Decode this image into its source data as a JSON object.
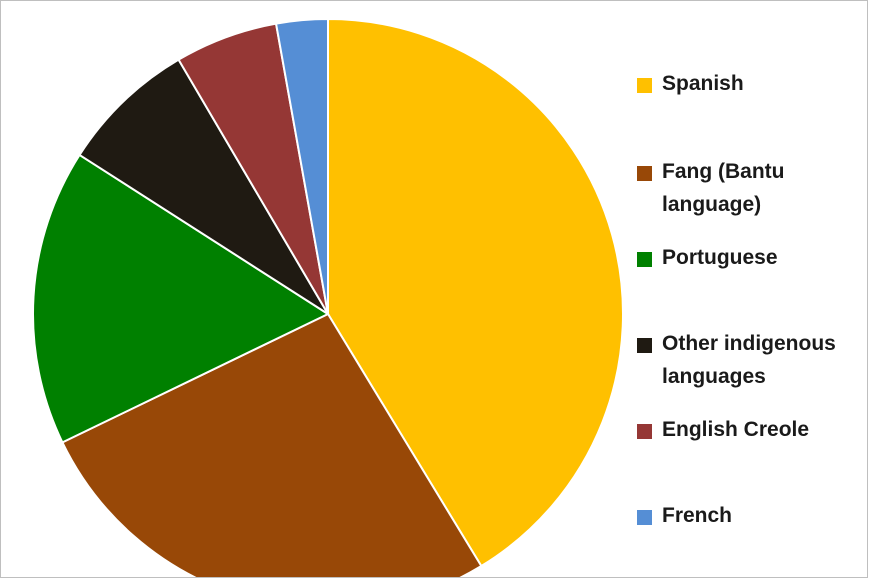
{
  "chart_data": {
    "type": "pie",
    "title": "",
    "slices": [
      {
        "label": "Spanish",
        "value": 42.5,
        "color": "#FFC000"
      },
      {
        "label": "Fang (Bantu language)",
        "value": 27.3,
        "color": "#984807"
      },
      {
        "label": "Portuguese",
        "value": 16.7,
        "color": "#008000"
      },
      {
        "label": "Other indigenous languages",
        "value": 7.7,
        "color": "#1F1A12"
      },
      {
        "label": "English Creole",
        "value": 5.8,
        "color": "#953735"
      },
      {
        "label": "French",
        "value": 2.9,
        "color": "#558ED5"
      }
    ],
    "start": "top, clockwise",
    "legend_position": "right"
  },
  "legend": {
    "items": [
      {
        "lines": [
          "Spanish"
        ],
        "color": "#FFC000"
      },
      {
        "lines": [
          "Fang (Bantu",
          "language)"
        ],
        "color": "#984807"
      },
      {
        "lines": [
          "Portuguese"
        ],
        "color": "#008000"
      },
      {
        "lines": [
          "Other indigenous",
          "languages"
        ],
        "color": "#1F1A12"
      },
      {
        "lines": [
          "English Creole"
        ],
        "color": "#953735"
      },
      {
        "lines": [
          "French"
        ],
        "color": "#558ED5"
      }
    ]
  }
}
